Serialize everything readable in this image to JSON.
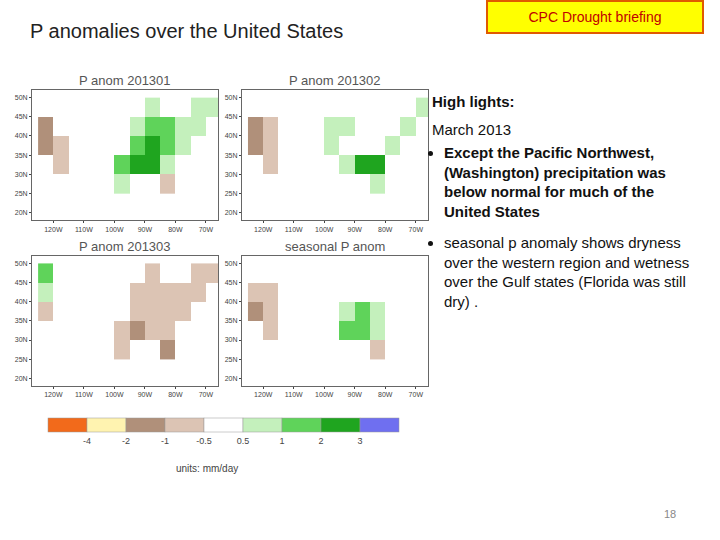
{
  "slide": {
    "title": "P anomalies over the United States",
    "badge": "CPC Drought briefing",
    "page": "18"
  },
  "highlights": {
    "heading": "High lights:",
    "month": "March  2013",
    "bullets": [
      "Except the Pacific Northwest, (Washington)  precipitation was below normal  for much of the United States",
      "seasonal p anomaly shows dryness over the western region and wetness over the Gulf states (Florida was still dry) ."
    ]
  },
  "colorbar": {
    "colors": [
      "#f26a1b",
      "#fff3b0",
      "#b0907a",
      "#dcc4b4",
      "#ffffff",
      "#c4f0bc",
      "#5fd35a",
      "#1fa51f",
      "#6f6ff0"
    ],
    "ticks": [
      -4,
      -2,
      -1,
      -0.5,
      0.5,
      1,
      2,
      3
    ],
    "units": "units: mm/day"
  },
  "chart_data": [
    {
      "type": "heatmap",
      "title": "P anom 201301",
      "x": [
        -122.5,
        -117.5,
        -112.5,
        -107.5,
        -102.5,
        -97.5,
        -92.5,
        -87.5,
        -82.5,
        -77.5,
        -72.5,
        -67.5
      ],
      "y": [
        27.5,
        32.5,
        37.5,
        42.5,
        47.5
      ],
      "cells": [
        [
          null,
          null,
          null,
          null,
          0.3,
          0.6,
          null,
          null,
          -1.0,
          null,
          null,
          null
        ],
        [
          null,
          -0.6,
          -0.3,
          -0.2,
          0.4,
          1.2,
          2.2,
          2.8,
          0.8,
          null,
          null,
          null
        ],
        [
          -1.5,
          -0.6,
          -0.4,
          -0.3,
          -0.2,
          0.3,
          1.8,
          2.5,
          1.5,
          0.6,
          null,
          null
        ],
        [
          -1.2,
          -0.4,
          -0.3,
          -0.2,
          -0.3,
          -0.2,
          0.8,
          1.5,
          1.2,
          0.6,
          0.5,
          null
        ],
        [
          -0.3,
          0.2,
          0,
          -0.2,
          -0.3,
          -0.2,
          0.3,
          0.6,
          null,
          null,
          0.7,
          0.5
        ]
      ],
      "xlim": [
        -127,
        -66
      ],
      "ylim": [
        18,
        52
      ],
      "xticks": [
        {
          "value": -120,
          "label": "120W"
        },
        {
          "value": -110,
          "label": "110W"
        },
        {
          "value": -100,
          "label": "100W"
        },
        {
          "value": -90,
          "label": "90W"
        },
        {
          "value": -80,
          "label": "80W"
        },
        {
          "value": -70,
          "label": "70W"
        }
      ],
      "yticks": [
        {
          "value": 20,
          "label": "20N"
        },
        {
          "value": 25,
          "label": "25N"
        },
        {
          "value": 30,
          "label": "30N"
        },
        {
          "value": 35,
          "label": "35N"
        },
        {
          "value": 40,
          "label": "40N"
        },
        {
          "value": 45,
          "label": "45N"
        },
        {
          "value": 50,
          "label": "50N"
        }
      ]
    },
    {
      "type": "heatmap",
      "title": "P anom 201302",
      "x": [
        -122.5,
        -117.5,
        -112.5,
        -107.5,
        -102.5,
        -97.5,
        -92.5,
        -87.5,
        -82.5,
        -77.5,
        -72.5,
        -67.5
      ],
      "y": [
        27.5,
        32.5,
        37.5,
        42.5,
        47.5
      ],
      "cells": [
        [
          null,
          null,
          null,
          null,
          -0.4,
          -0.2,
          null,
          null,
          0.6,
          null,
          null,
          null
        ],
        [
          null,
          -0.6,
          -0.4,
          -0.2,
          -0.3,
          0.2,
          0.6,
          2.2,
          2.5,
          null,
          null,
          null
        ],
        [
          -1.5,
          -0.6,
          -0.3,
          -0.2,
          0.2,
          0.6,
          0.4,
          0.3,
          0.4,
          0.8,
          null,
          null
        ],
        [
          -1.2,
          -0.6,
          -0.3,
          0,
          0.3,
          0.6,
          0.6,
          0.4,
          0.3,
          0.3,
          0.6,
          null
        ],
        [
          0.3,
          -0.2,
          -0.2,
          0,
          0.2,
          0.3,
          0.2,
          0.3,
          null,
          null,
          0.4,
          0.6
        ]
      ],
      "xlim": [
        -127,
        -66
      ],
      "ylim": [
        18,
        52
      ],
      "xticks": [
        {
          "value": -120,
          "label": "120W"
        },
        {
          "value": -110,
          "label": "110W"
        },
        {
          "value": -100,
          "label": "100W"
        },
        {
          "value": -90,
          "label": "90W"
        },
        {
          "value": -80,
          "label": "80W"
        },
        {
          "value": -70,
          "label": "70W"
        }
      ],
      "yticks": [
        {
          "value": 20,
          "label": "20N"
        },
        {
          "value": 25,
          "label": "25N"
        },
        {
          "value": 30,
          "label": "30N"
        },
        {
          "value": 35,
          "label": "35N"
        },
        {
          "value": 40,
          "label": "40N"
        },
        {
          "value": 45,
          "label": "45N"
        },
        {
          "value": 50,
          "label": "50N"
        }
      ]
    },
    {
      "type": "heatmap",
      "title": "P anom 201303",
      "x": [
        -122.5,
        -117.5,
        -112.5,
        -107.5,
        -102.5,
        -97.5,
        -92.5,
        -87.5,
        -82.5,
        -77.5,
        -72.5,
        -67.5
      ],
      "y": [
        27.5,
        32.5,
        37.5,
        42.5,
        47.5
      ],
      "cells": [
        [
          null,
          null,
          null,
          null,
          -0.3,
          -0.6,
          null,
          null,
          -1.2,
          null,
          null,
          null
        ],
        [
          null,
          -0.4,
          -0.3,
          -0.2,
          -0.3,
          -0.6,
          -1.2,
          -0.8,
          -0.6,
          null,
          null,
          null
        ],
        [
          -0.8,
          -0.4,
          -0.3,
          -0.3,
          -0.2,
          -0.4,
          -0.8,
          -0.7,
          -0.6,
          -0.6,
          null,
          null
        ],
        [
          0.6,
          -0.3,
          -0.3,
          -0.4,
          -0.3,
          -0.4,
          -0.6,
          -0.7,
          -0.8,
          -0.6,
          -0.7,
          null
        ],
        [
          1.2,
          0.3,
          -0.2,
          -0.3,
          -0.2,
          -0.3,
          -0.4,
          -0.6,
          null,
          null,
          -0.8,
          -0.6
        ]
      ],
      "xlim": [
        -127,
        -66
      ],
      "ylim": [
        18,
        52
      ],
      "xticks": [
        {
          "value": -120,
          "label": "120W"
        },
        {
          "value": -110,
          "label": "110W"
        },
        {
          "value": -100,
          "label": "100W"
        },
        {
          "value": -90,
          "label": "90W"
        },
        {
          "value": -80,
          "label": "80W"
        },
        {
          "value": -70,
          "label": "70W"
        }
      ],
      "yticks": [
        {
          "value": 20,
          "label": "20N"
        },
        {
          "value": 25,
          "label": "25N"
        },
        {
          "value": 30,
          "label": "30N"
        },
        {
          "value": 35,
          "label": "35N"
        },
        {
          "value": 40,
          "label": "40N"
        },
        {
          "value": 45,
          "label": "45N"
        },
        {
          "value": 50,
          "label": "50N"
        }
      ]
    },
    {
      "type": "heatmap",
      "title": "seasonal P anom",
      "x": [
        -122.5,
        -117.5,
        -112.5,
        -107.5,
        -102.5,
        -97.5,
        -92.5,
        -87.5,
        -82.5,
        -77.5,
        -72.5,
        -67.5
      ],
      "y": [
        27.5,
        32.5,
        37.5,
        42.5,
        47.5
      ],
      "cells": [
        [
          null,
          null,
          null,
          null,
          0.2,
          0.3,
          null,
          null,
          -0.8,
          null,
          null,
          null
        ],
        [
          null,
          -0.6,
          -0.4,
          -0.3,
          -0.2,
          0.3,
          1.2,
          1.8,
          0.8,
          null,
          null,
          null
        ],
        [
          -1.2,
          -0.6,
          -0.4,
          -0.3,
          -0.2,
          0.2,
          0.6,
          1.2,
          0.6,
          0.4,
          null,
          null
        ],
        [
          -0.8,
          -0.6,
          -0.3,
          -0.3,
          -0.2,
          -0.1,
          0.3,
          0.4,
          0.3,
          0.2,
          0.2,
          null
        ],
        [
          0.3,
          -0.2,
          -0.3,
          -0.2,
          -0.2,
          -0.2,
          0.2,
          0.3,
          null,
          null,
          0.3,
          0.2
        ]
      ],
      "xlim": [
        -127,
        -66
      ],
      "ylim": [
        18,
        52
      ],
      "xticks": [
        {
          "value": -120,
          "label": "120W"
        },
        {
          "value": -110,
          "label": "110W"
        },
        {
          "value": -100,
          "label": "100W"
        },
        {
          "value": -90,
          "label": "90W"
        },
        {
          "value": -80,
          "label": "80W"
        },
        {
          "value": -70,
          "label": "70W"
        }
      ],
      "yticks": [
        {
          "value": 20,
          "label": "20N"
        },
        {
          "value": 25,
          "label": "25N"
        },
        {
          "value": 30,
          "label": "30N"
        },
        {
          "value": 35,
          "label": "35N"
        },
        {
          "value": 40,
          "label": "40N"
        },
        {
          "value": 45,
          "label": "45N"
        },
        {
          "value": 50,
          "label": "50N"
        }
      ]
    }
  ]
}
